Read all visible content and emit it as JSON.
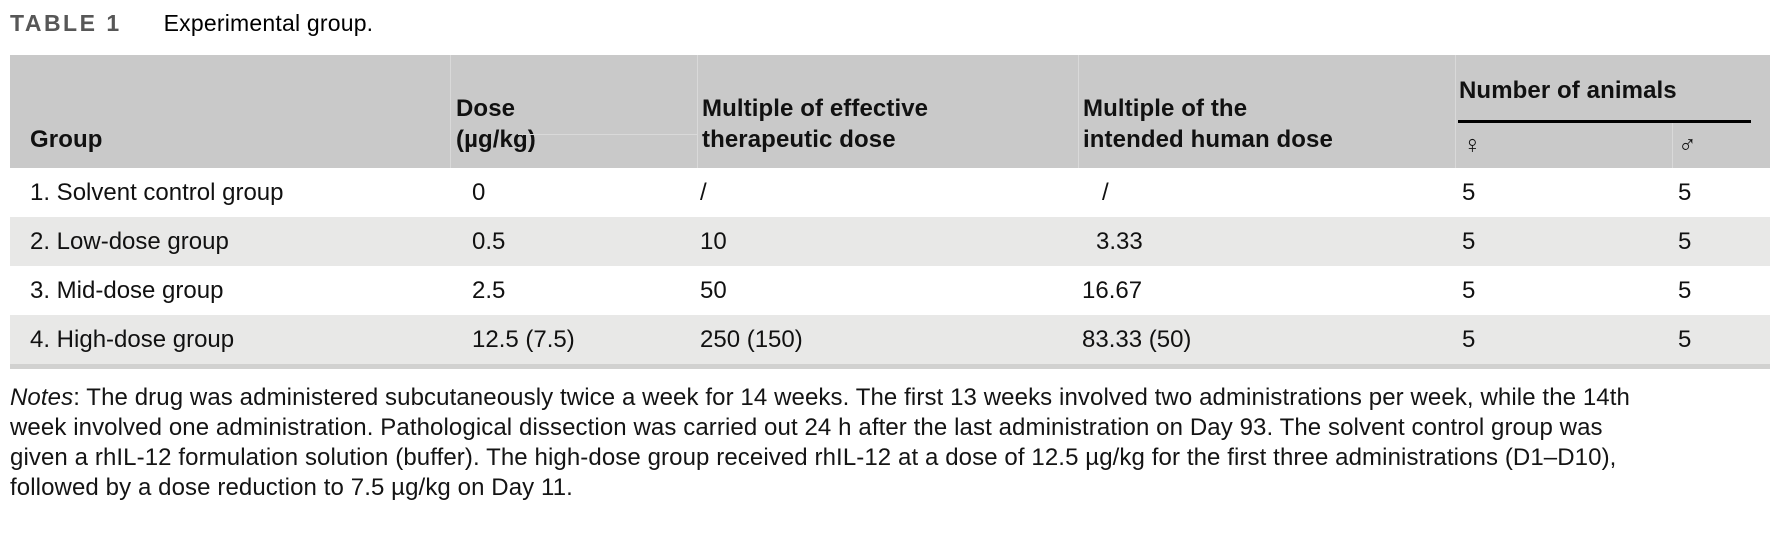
{
  "caption": {
    "label": "TABLE 1",
    "title": "Experimental group."
  },
  "table": {
    "headers": {
      "group": "Group",
      "dose_line1": "Dose",
      "dose_line2": "(µg/kg)",
      "effective_line1": "Multiple of effective",
      "effective_line2": "therapeutic dose",
      "human_line1": "Multiple of the",
      "human_line2": "intended human dose",
      "animals_group": "Number of animals",
      "female_symbol": "♀",
      "male_symbol": "♂"
    },
    "rows": [
      {
        "group": "1. Solvent control group",
        "dose": "0",
        "multiple_effective": "/",
        "multiple_human": "/",
        "female": "5",
        "male": "5"
      },
      {
        "group": "2. Low-dose group",
        "dose": "0.5",
        "multiple_effective": "10",
        "multiple_human": "3.33",
        "female": "5",
        "male": "5"
      },
      {
        "group": "3. Mid-dose group",
        "dose": "2.5",
        "multiple_effective": "50",
        "multiple_human": "16.67",
        "female": "5",
        "male": "5"
      },
      {
        "group": "4. High-dose group",
        "dose": "12.5 (7.5)",
        "multiple_effective": "250 (150)",
        "multiple_human": "83.33 (50)",
        "female": "5",
        "male": "5"
      }
    ]
  },
  "notes": {
    "label": "Notes",
    "line1_rest": ": The drug was administered subcutaneously twice a week for 14 weeks. The first 13 weeks involved two administrations per week, while the 14th",
    "line2": "week involved one administration. Pathological dissection was carried out 24 h after the last administration on Day 93. The solvent control group was",
    "line3": "given a rhIL-12 formulation solution (buffer). The high-dose group received rhIL-12 at a dose of 12.5 µg/kg for the first three administrations (D1–D10),",
    "line4": "followed by a dose reduction to 7.5 µg/kg on Day 11."
  },
  "colors": {
    "header_bg": "#c9c9c9",
    "row_alt_bg": "#e8e8e7",
    "bottom_strip": "#d1d1d0",
    "header_separator": "#d9d9d9",
    "caption_label": "#575757",
    "spanner_underline": "#000000"
  }
}
